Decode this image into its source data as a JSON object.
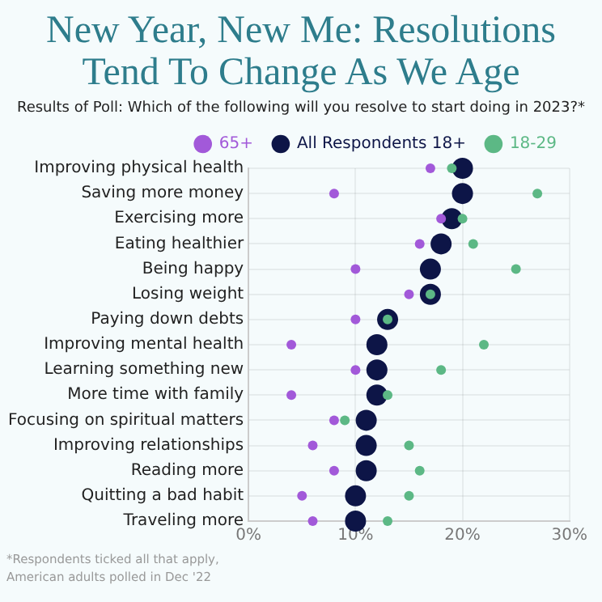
{
  "chart_data": {
    "type": "scatter",
    "title": "New Year, New Me: Resolutions Tend To Change As We Age",
    "subtitle": "Results of Poll: Which of the following will you resolve to start doing in 2023?*",
    "categories": [
      "Improving physical health",
      "Saving more money",
      "Exercising more",
      "Eating healthier",
      "Being happy",
      "Losing weight",
      "Paying down debts",
      "Improving mental health",
      "Learning something new",
      "More time with family",
      "Focusing on spiritual matters",
      "Improving relationships",
      "Reading more",
      "Quitting a bad habit",
      "Traveling more"
    ],
    "orientation": "horizontal",
    "series": [
      {
        "name": "65+",
        "color": "#a259d9",
        "values": [
          17,
          8,
          18,
          16,
          10,
          15,
          10,
          4,
          10,
          4,
          8,
          6,
          8,
          5,
          6
        ]
      },
      {
        "name": "All Respondents 18+",
        "color": "#0d1547",
        "values": [
          20,
          20,
          19,
          18,
          17,
          17,
          13,
          12,
          12,
          12,
          11,
          11,
          11,
          10,
          10
        ]
      },
      {
        "name": "18-29",
        "color": "#5cb885",
        "values": [
          19,
          27,
          20,
          21,
          25,
          17,
          13,
          22,
          18,
          13,
          9,
          15,
          16,
          15,
          13
        ]
      }
    ],
    "xlim": [
      0,
      30
    ],
    "xticks": [
      {
        "value": 0,
        "label": "0%"
      },
      {
        "value": 10,
        "label": "10%"
      },
      {
        "value": 20,
        "label": "20%"
      },
      {
        "value": 30,
        "label": "30%"
      }
    ],
    "grid": true,
    "legend": "top",
    "marker": "circle",
    "annotations": [
      "*Respondents ticked all that apply, American adults polled in Dec '22"
    ]
  }
}
